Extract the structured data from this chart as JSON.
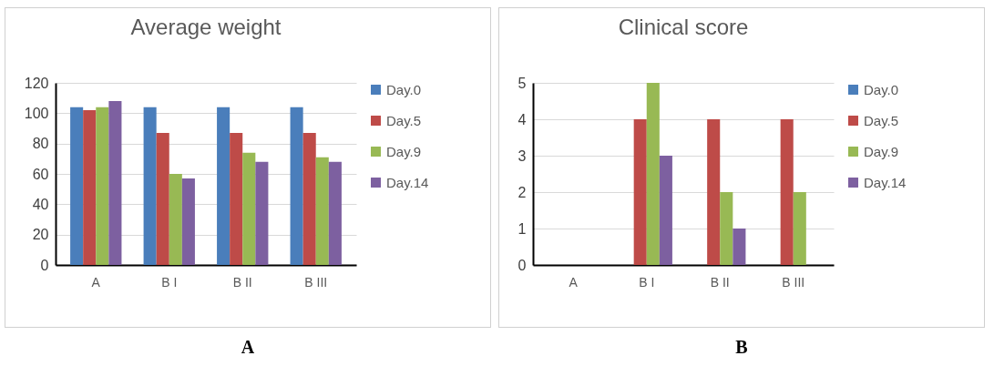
{
  "chart_data": [
    {
      "type": "bar",
      "title": "Average weight",
      "categories": [
        "A",
        "B I",
        "B II",
        "B III"
      ],
      "ylim": [
        0,
        120
      ],
      "yticks": [
        0,
        20,
        40,
        60,
        80,
        100,
        120
      ],
      "grid": "y",
      "legend": "right",
      "annotations": [
        "A"
      ],
      "series": [
        {
          "name": "Day.0",
          "color": "#4a7ebb",
          "values": [
            104,
            104,
            104,
            104
          ]
        },
        {
          "name": "Day.5",
          "color": "#be4b48",
          "values": [
            102,
            87,
            87,
            87
          ]
        },
        {
          "name": "Day.9",
          "color": "#98b954",
          "values": [
            104,
            60,
            74,
            71
          ]
        },
        {
          "name": "Day.14",
          "color": "#7d60a0",
          "values": [
            108,
            57,
            68,
            68
          ]
        }
      ]
    },
    {
      "type": "bar",
      "title": "Clinical score",
      "categories": [
        "A",
        "B I",
        "B II",
        "B III"
      ],
      "ylim": [
        0,
        5
      ],
      "yticks": [
        0,
        1,
        2,
        3,
        4,
        5
      ],
      "grid": "y",
      "legend": "right",
      "annotations": [
        "B"
      ],
      "series": [
        {
          "name": "Day.0",
          "color": "#4a7ebb",
          "values": [
            0,
            0,
            0,
            0
          ]
        },
        {
          "name": "Day.5",
          "color": "#be4b48",
          "values": [
            0,
            4,
            4,
            4
          ]
        },
        {
          "name": "Day.9",
          "color": "#98b954",
          "values": [
            0,
            5,
            2,
            2
          ]
        },
        {
          "name": "Day.14",
          "color": "#7d60a0",
          "values": [
            0,
            3,
            1,
            0
          ]
        }
      ]
    }
  ]
}
